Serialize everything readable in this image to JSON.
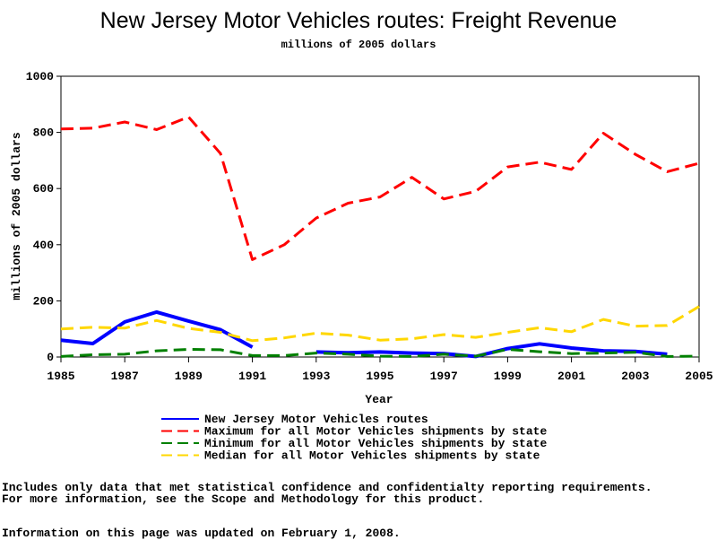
{
  "chart_data": {
    "type": "line",
    "title": "New Jersey Motor Vehicles routes: Freight Revenue",
    "subtitle": "millions of 2005 dollars",
    "xlabel": "Year",
    "ylabel": "millions of 2005 dollars",
    "xlim": [
      1985,
      2005
    ],
    "ylim": [
      0,
      1000
    ],
    "x_ticks": [
      "1985",
      "1987",
      "1989",
      "1991",
      "1993",
      "1995",
      "1997",
      "1999",
      "2001",
      "2003",
      "2005"
    ],
    "y_ticks": [
      "0",
      "200",
      "400",
      "600",
      "800",
      "1000"
    ],
    "grid": false,
    "legend_position": "bottom",
    "series": [
      {
        "name": "New Jersey Motor Vehicles routes",
        "color": "#0000ff",
        "style": "solid",
        "segments": [
          {
            "x": [
              1985,
              1986,
              1987,
              1988,
              1989,
              1990,
              1991
            ],
            "y": [
              60,
              48,
              125,
              160,
              128,
              97,
              35
            ]
          },
          {
            "x": [
              1993,
              1994,
              1995,
              1996,
              1997,
              1998,
              1999,
              2000,
              2001,
              2002,
              2003,
              2004
            ],
            "y": [
              18,
              15,
              18,
              14,
              12,
              2,
              30,
              47,
              32,
              22,
              20,
              10
            ]
          }
        ]
      },
      {
        "name": "Maximum for all Motor Vehicles shipments by state",
        "color": "#ff0000",
        "style": "dashed",
        "segments": [
          {
            "x": [
              1985,
              1986,
              1987,
              1988,
              1989,
              1990,
              1991,
              1992,
              1993,
              1994,
              1995,
              1996,
              1997,
              1998,
              1999,
              2000,
              2001,
              2002,
              2003,
              2004,
              2005
            ],
            "y": [
              812,
              815,
              837,
              810,
              855,
              725,
              347,
              400,
              495,
              548,
              570,
              640,
              563,
              590,
              677,
              694,
              668,
              797,
              722,
              660,
              690
            ]
          }
        ]
      },
      {
        "name": "Minimum for all Motor Vehicles shipments by state",
        "color": "#008000",
        "style": "dashed",
        "segments": [
          {
            "x": [
              1985,
              1986,
              1987,
              1988,
              1989,
              1990,
              1991,
              1992,
              1993,
              1994,
              1995,
              1996,
              1997,
              1998,
              1999,
              2000,
              2001,
              2002,
              2003,
              2004,
              2005
            ],
            "y": [
              2,
              8,
              10,
              22,
              27,
              26,
              5,
              5,
              14,
              10,
              3,
              2,
              10,
              3,
              27,
              19,
              12,
              14,
              17,
              2,
              3
            ]
          }
        ]
      },
      {
        "name": "Median for all Motor Vehicles shipments by state",
        "color": "#ffd700",
        "style": "dashed",
        "segments": [
          {
            "x": [
              1985,
              1986,
              1987,
              1988,
              1989,
              1990,
              1991,
              1992,
              1993,
              1994,
              1995,
              1996,
              1997,
              1998,
              1999,
              2000,
              2001,
              2002,
              2003,
              2004,
              2005
            ],
            "y": [
              100,
              106,
              103,
              130,
              102,
              88,
              58,
              68,
              85,
              78,
              60,
              65,
              80,
              70,
              88,
              104,
              90,
              134,
              110,
              112,
              180
            ]
          }
        ]
      }
    ]
  },
  "notes": {
    "line1": "Includes only data that met statistical confidence and confidentialty reporting requirements.",
    "line2": "For more information, see the Scope and Methodology for this product.",
    "updated": "Information on this page was updated on February 1, 2008."
  }
}
